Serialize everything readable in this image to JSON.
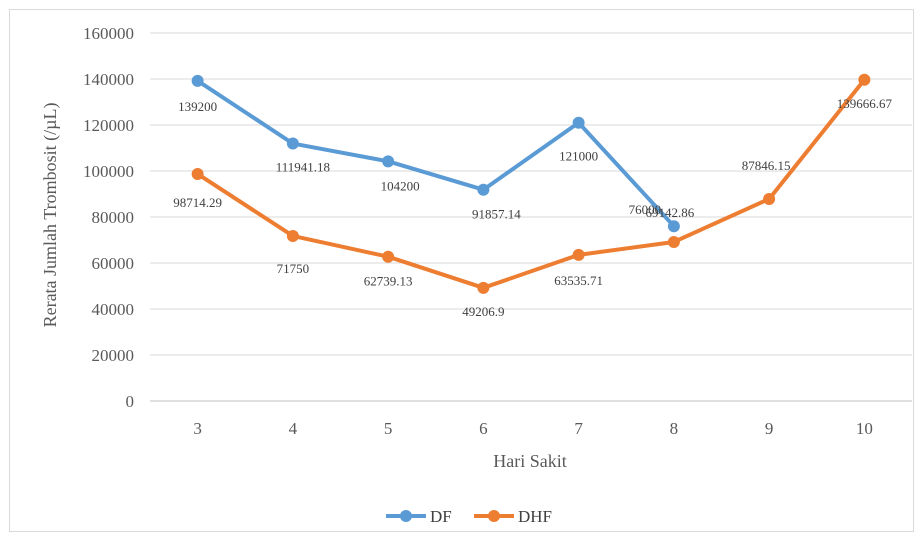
{
  "chart_data": {
    "type": "line",
    "title": "",
    "xlabel": "Hari Sakit",
    "ylabel": "Rerata Jumlah Trombosit (/µL)",
    "ylim": [
      0,
      160000
    ],
    "yticks": [
      0,
      20000,
      40000,
      60000,
      80000,
      100000,
      120000,
      140000,
      160000
    ],
    "categories": [
      "3",
      "4",
      "5",
      "6",
      "7",
      "8",
      "9",
      "10"
    ],
    "grid": true,
    "legend_position": "bottom",
    "series": [
      {
        "name": "DF",
        "color": "#5B9BD5",
        "values": [
          139200,
          111941.18,
          104200,
          91857.14,
          121000,
          76000,
          null,
          null
        ],
        "labels": [
          "139200",
          "111941.18",
          "104200",
          "91857.14",
          "121000",
          "76000",
          "",
          ""
        ]
      },
      {
        "name": "DHF",
        "color": "#ED7D31",
        "values": [
          98714.29,
          71750,
          62739.13,
          49206.9,
          63535.71,
          69142.86,
          87846.15,
          139666.67
        ],
        "labels": [
          "98714.29",
          "71750",
          "62739.13",
          "49206.9",
          "63535.71",
          "69142.86",
          "87846.15",
          "139666.67"
        ]
      }
    ]
  }
}
